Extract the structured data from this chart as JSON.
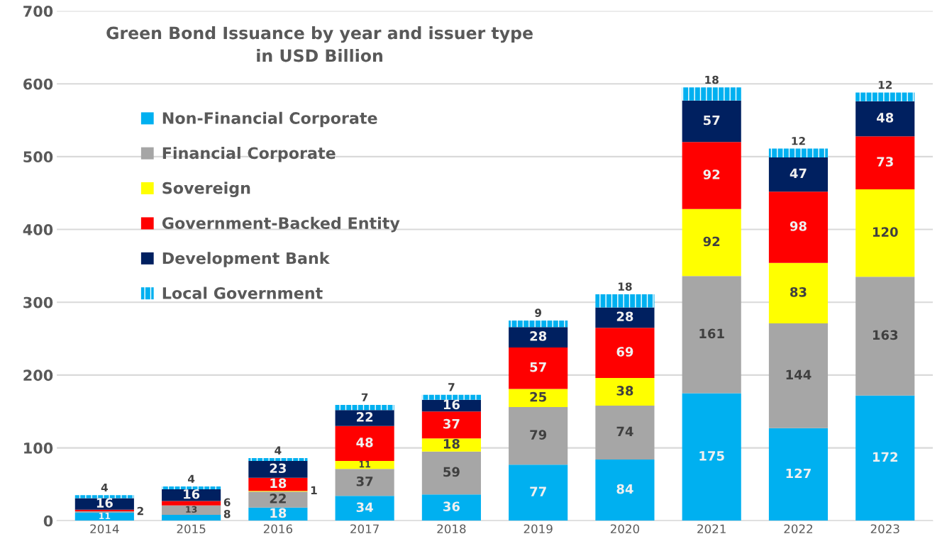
{
  "chart_data": {
    "type": "bar",
    "title": "Green Bond Issuance by year and issuer type\nin USD Billion",
    "stacked": true,
    "categories": [
      "2014",
      "2015",
      "2016",
      "2017",
      "2018",
      "2019",
      "2020",
      "2021",
      "2022",
      "2023"
    ],
    "series": [
      {
        "name": "Non-Financial Corporate",
        "color": "#00b0f0",
        "values": [
          11,
          8,
          18,
          34,
          36,
          77,
          84,
          175,
          127,
          172
        ]
      },
      {
        "name": "Financial Corporate",
        "color": "#a6a6a6",
        "values": [
          2,
          13,
          22,
          37,
          59,
          79,
          74,
          161,
          144,
          163
        ]
      },
      {
        "name": "Sovereign",
        "color": "#ffff00",
        "values": [
          null,
          null,
          1,
          11,
          18,
          25,
          38,
          92,
          83,
          120
        ]
      },
      {
        "name": "Government-Backed Entity",
        "color": "#ff0000",
        "values": [
          2,
          6,
          18,
          48,
          37,
          57,
          69,
          92,
          98,
          73
        ],
        "value_labels": [
          null,
          "6",
          "18",
          "48",
          "37",
          "57",
          "69",
          "92",
          "98",
          "73"
        ]
      },
      {
        "name": "Development Bank",
        "color": "#002060",
        "values": [
          16,
          16,
          23,
          22,
          16,
          28,
          28,
          57,
          47,
          48
        ]
      },
      {
        "name": "Local Government",
        "color": "#00b0f0",
        "values": [
          4,
          4,
          4,
          7,
          7,
          9,
          18,
          18,
          12,
          12
        ]
      }
    ],
    "ylim": [
      0,
      700
    ],
    "yticks": [
      0,
      100,
      200,
      300,
      400,
      500,
      600,
      700
    ],
    "grid": "y",
    "legend": "top left",
    "data_labels": true
  }
}
